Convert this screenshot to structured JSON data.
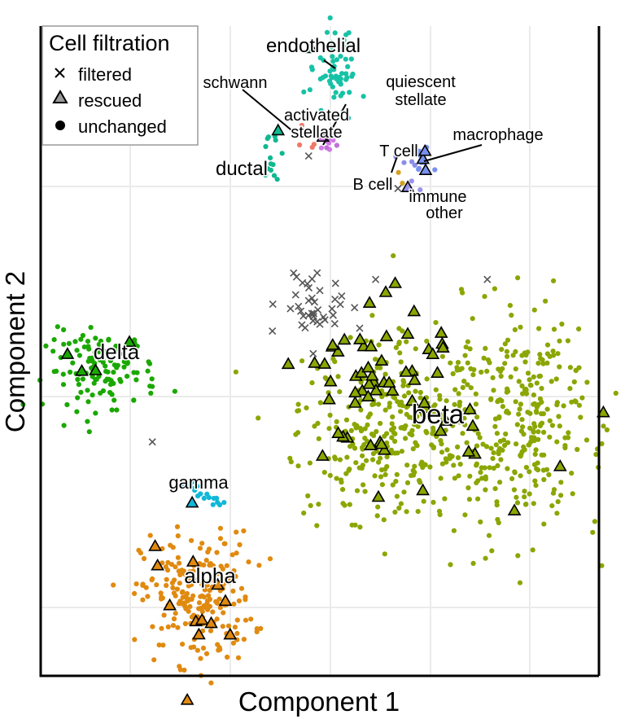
{
  "chart_data": {
    "type": "scatter",
    "title": "",
    "xlabel": "Component 1",
    "ylabel": "Component 2",
    "xlim": [
      0,
      100
    ],
    "ylim": [
      0,
      100
    ],
    "grid": true,
    "tick_labels_shown": false,
    "legend": {
      "title": "Cell filtration",
      "placement": "top-left",
      "entries": [
        {
          "label": "filtered",
          "marker": "x"
        },
        {
          "label": "rescued",
          "marker": "triangle"
        },
        {
          "label": "unchanged",
          "marker": "dot"
        }
      ]
    },
    "series": [
      {
        "name": "beta",
        "color": "#8aa600",
        "center": [
          70,
          40
        ],
        "spread": [
          11,
          10
        ]
      },
      {
        "name": "alpha",
        "color": "#e08a10",
        "center": [
          28,
          12
        ],
        "spread": [
          5,
          5
        ]
      },
      {
        "name": "delta",
        "color": "#1aa800",
        "center": [
          11,
          47
        ],
        "spread": [
          5,
          3
        ]
      },
      {
        "name": "gamma",
        "color": "#10b8d8",
        "center": [
          28,
          27
        ],
        "spread": [
          3,
          2
        ]
      },
      {
        "name": "endothelial",
        "color": "#17c2a6",
        "center": [
          53,
          93
        ],
        "spread": [
          2,
          3
        ]
      },
      {
        "name": "ductal",
        "color": "#10b890",
        "center": [
          41,
          80
        ],
        "spread": [
          1,
          2
        ]
      },
      {
        "name": "schwann",
        "color": "#f07868",
        "center": [
          48,
          82
        ],
        "spread": [
          1,
          1
        ]
      },
      {
        "name": "activated stellate",
        "color": "#d278e8",
        "center": [
          51,
          82
        ],
        "spread": [
          1,
          1
        ]
      },
      {
        "name": "quiescent stellate",
        "color": "#c070d8",
        "center": [
          52,
          82
        ],
        "spread": [
          1,
          1
        ]
      },
      {
        "name": "macrophage",
        "color": "#7890f0",
        "center": [
          68,
          79
        ],
        "spread": [
          1,
          1
        ]
      },
      {
        "name": "T cell",
        "color": "#8a8ee8",
        "center": [
          66,
          79
        ],
        "spread": [
          1,
          1
        ]
      },
      {
        "name": "B cell",
        "color": "#d4a020",
        "center": [
          64,
          77
        ],
        "spread": [
          1,
          1
        ]
      },
      {
        "name": "immune other",
        "color": "#9a92f0",
        "center": [
          67,
          75
        ],
        "spread": [
          1,
          1
        ]
      },
      {
        "name": "filtered",
        "color": "#505050",
        "center": [
          49,
          57
        ],
        "spread": [
          3,
          3
        ]
      }
    ],
    "annotations": [
      {
        "text": "endothelial",
        "size": "medium"
      },
      {
        "text": "schwann",
        "size": "small"
      },
      {
        "text": "quiescent",
        "size": "small"
      },
      {
        "text": "stellate",
        "size": "small"
      },
      {
        "text": "activated",
        "size": "small"
      },
      {
        "text": "stellate",
        "size": "small"
      },
      {
        "text": "macrophage",
        "size": "small"
      },
      {
        "text": "T cell",
        "size": "small"
      },
      {
        "text": "ductal",
        "size": "medium"
      },
      {
        "text": "B cell",
        "size": "small"
      },
      {
        "text": "immune",
        "size": "small"
      },
      {
        "text": "other",
        "size": "small"
      },
      {
        "text": "delta",
        "size": "medium"
      },
      {
        "text": "beta",
        "size": "large"
      },
      {
        "text": "gamma",
        "size": "small"
      },
      {
        "text": "alpha",
        "size": "medium"
      }
    ]
  }
}
